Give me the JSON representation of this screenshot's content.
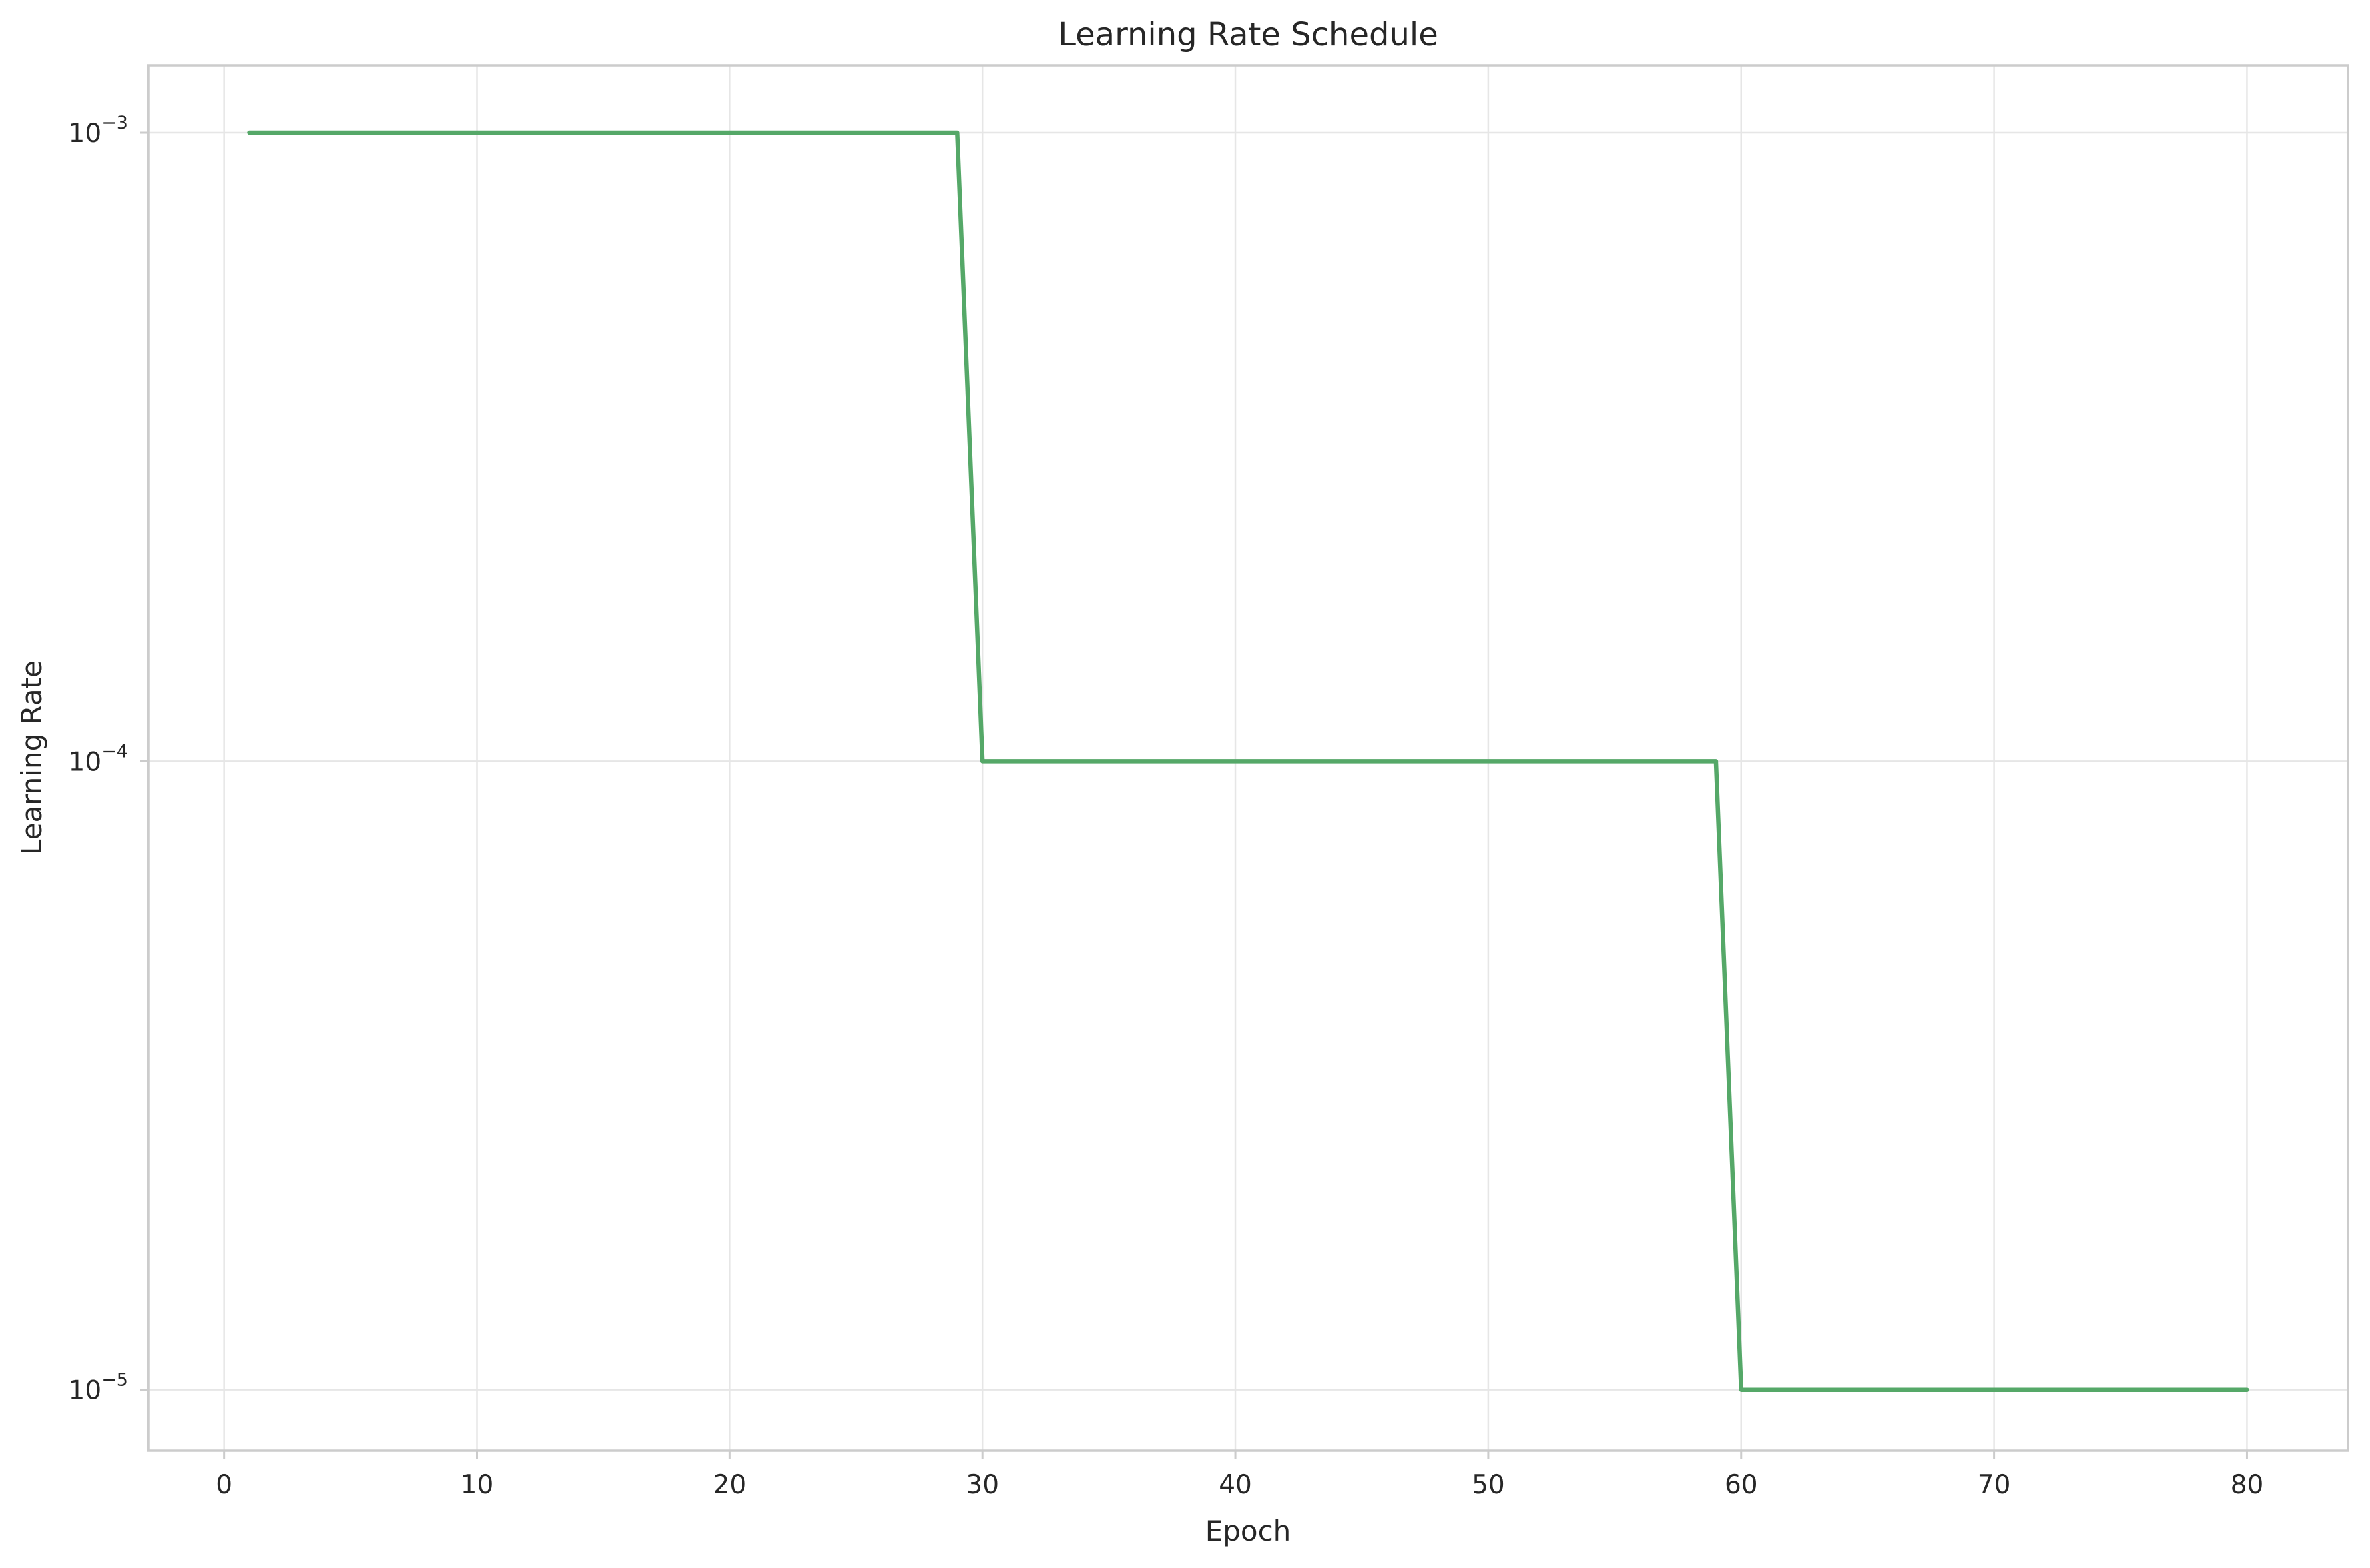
{
  "chart_data": {
    "type": "line",
    "title": "Learning Rate Schedule",
    "xlabel": "Epoch",
    "ylabel": "Learning Rate",
    "yscale": "log",
    "xlim": [
      -3,
      84
    ],
    "ylim": [
      8e-06,
      0.00128
    ],
    "grid": true,
    "x_ticks": [
      {
        "value": 0,
        "label": "0"
      },
      {
        "value": 10,
        "label": "10"
      },
      {
        "value": 20,
        "label": "20"
      },
      {
        "value": 30,
        "label": "30"
      },
      {
        "value": 40,
        "label": "40"
      },
      {
        "value": 50,
        "label": "50"
      },
      {
        "value": 60,
        "label": "60"
      },
      {
        "value": 70,
        "label": "70"
      },
      {
        "value": 80,
        "label": "80"
      }
    ],
    "y_ticks": [
      {
        "value": 0.001,
        "base": "10",
        "exp": "−3"
      },
      {
        "value": 0.0001,
        "base": "10",
        "exp": "−4"
      },
      {
        "value": 1e-05,
        "base": "10",
        "exp": "−5"
      }
    ],
    "colors": {
      "series": "#55a868"
    },
    "series": [
      {
        "x": [
          1,
          29,
          30,
          59,
          60,
          80
        ],
        "y": [
          0.001,
          0.001,
          0.0001,
          0.0001,
          1e-05,
          1e-05
        ]
      }
    ]
  }
}
